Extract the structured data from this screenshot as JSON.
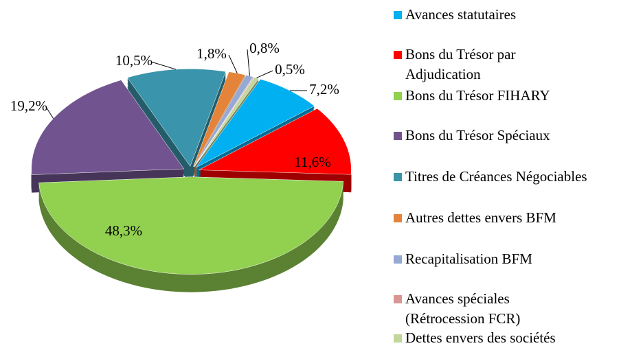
{
  "chart_data": {
    "type": "pie",
    "categories": [
      "Avances statutaires",
      "Bons du Trésor par Adjudication",
      "Bons du Trésor FIHARY",
      "Bons du Trésor Spéciaux",
      "Titres de Créances Négociables",
      "Autres dettes envers BFM",
      "Recapitalisation BFM",
      "Avances spéciales (Rétrocession FCR)",
      "Dettes envers des sociétés"
    ],
    "values": [
      7.2,
      11.6,
      48.3,
      19.2,
      10.5,
      1.8,
      0.8,
      0.1,
      0.5
    ],
    "value_labels": [
      "7,2%",
      "11,6%",
      "48,3%",
      "19,2%",
      "10,5%",
      "1,8%",
      "0,8%",
      null,
      "0,5%"
    ],
    "colors": [
      "#00b0f0",
      "#ff0000",
      "#92d050",
      "#71548f",
      "#3a94ab",
      "#e3843a",
      "#95a9d4",
      "#d99594",
      "#c3d69b"
    ],
    "legend": "right"
  }
}
